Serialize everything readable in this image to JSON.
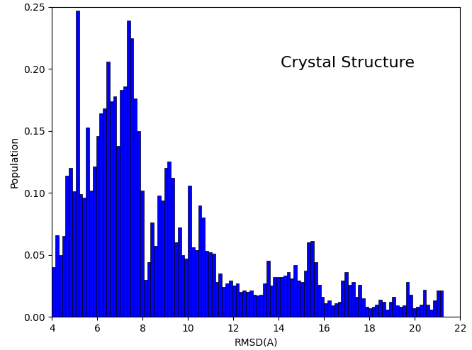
{
  "chart_data": {
    "type": "histogram",
    "xlabel": "RMSD(A)",
    "ylabel": "Population",
    "annotations": [
      "Crystal Structure"
    ],
    "color": "#0000ff",
    "bins": [
      4.0,
      4.15,
      4.3,
      4.45,
      4.6,
      4.75,
      4.9,
      5.05,
      5.2,
      5.35,
      5.5,
      5.65,
      5.8,
      5.95,
      6.1,
      6.25,
      6.4,
      6.55,
      6.7,
      6.85,
      7.0,
      7.15,
      7.3,
      7.45,
      7.6,
      7.75,
      7.9,
      8.05,
      8.2,
      8.35,
      8.5,
      8.65,
      8.8,
      8.95,
      9.1,
      9.25,
      9.4,
      9.55,
      9.7,
      9.85,
      10.0,
      10.15,
      10.3,
      10.45,
      10.6,
      10.75,
      10.9,
      11.05,
      11.2,
      11.35,
      11.5,
      11.65,
      11.8,
      11.95,
      12.1,
      12.25,
      12.4,
      12.55,
      12.7,
      12.85,
      13.0,
      13.15,
      13.3,
      13.45,
      13.6,
      13.75,
      13.9,
      14.05,
      14.2,
      14.35,
      14.5,
      14.65,
      14.8,
      14.95,
      15.1,
      15.25,
      15.4,
      15.55,
      15.7,
      15.85,
      16.0,
      16.15,
      16.3,
      16.45,
      16.6,
      16.75,
      16.9,
      17.05,
      17.2,
      17.35,
      17.5,
      17.65,
      17.8,
      17.95,
      18.1,
      18.25,
      18.4,
      18.55,
      18.7,
      18.85,
      19.0,
      19.15,
      19.3,
      19.45,
      19.6,
      19.75,
      19.9,
      20.05,
      20.2,
      20.35,
      20.5,
      20.65,
      20.8,
      20.95,
      21.1,
      21.25
    ],
    "values": [
      0.04,
      0.066,
      0.05,
      0.065,
      0.114,
      0.12,
      0.101,
      0.247,
      0.099,
      0.096,
      0.153,
      0.102,
      0.121,
      0.146,
      0.164,
      0.168,
      0.206,
      0.174,
      0.178,
      0.138,
      0.183,
      0.186,
      0.239,
      0.225,
      0.176,
      0.15,
      0.102,
      0.03,
      0.044,
      0.076,
      0.057,
      0.098,
      0.094,
      0.12,
      0.125,
      0.112,
      0.06,
      0.072,
      0.05,
      0.047,
      0.106,
      0.056,
      0.054,
      0.09,
      0.08,
      0.053,
      0.052,
      0.051,
      0.028,
      0.035,
      0.024,
      0.027,
      0.029,
      0.025,
      0.027,
      0.02,
      0.021,
      0.02,
      0.021,
      0.018,
      0.017,
      0.018,
      0.027,
      0.045,
      0.025,
      0.032,
      0.032,
      0.032,
      0.033,
      0.036,
      0.031,
      0.042,
      0.029,
      0.028,
      0.037,
      0.06,
      0.061,
      0.044,
      0.026,
      0.016,
      0.011,
      0.013,
      0.009,
      0.011,
      0.012,
      0.029,
      0.036,
      0.026,
      0.028,
      0.016,
      0.026,
      0.015,
      0.008,
      0.007,
      0.008,
      0.01,
      0.014,
      0.012,
      0.006,
      0.012,
      0.016,
      0.009,
      0.008,
      0.009,
      0.028,
      0.018,
      0.007,
      0.008,
      0.01,
      0.022,
      0.01,
      0.006,
      0.013,
      0.021,
      0.021
    ],
    "xlim": [
      4,
      22
    ],
    "xticks": [
      4,
      6,
      8,
      10,
      12,
      14,
      16,
      18,
      20,
      22
    ],
    "ylim": [
      0,
      0.25
    ],
    "yticks": [
      {
        "value": 0,
        "label": "0.00"
      },
      {
        "value": 0.05,
        "label": "0.05"
      },
      {
        "value": 0.1,
        "label": "0.10"
      },
      {
        "value": 0.15,
        "label": "0.15"
      },
      {
        "value": 0.2,
        "label": "0.20"
      },
      {
        "value": 0.25,
        "label": "0.25"
      }
    ]
  }
}
